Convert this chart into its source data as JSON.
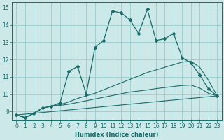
{
  "title": "",
  "xlabel": "Humidex (Indice chaleur)",
  "ylabel": "",
  "bg_color": "#cce8e8",
  "grid_color": "#99cccc",
  "line_color": "#1a6b6b",
  "xlim": [
    -0.5,
    23.5
  ],
  "ylim": [
    8.5,
    15.3
  ],
  "x_ticks": [
    0,
    1,
    2,
    3,
    4,
    5,
    6,
    7,
    8,
    9,
    10,
    11,
    12,
    13,
    14,
    15,
    16,
    17,
    18,
    19,
    20,
    21,
    22,
    23
  ],
  "y_ticks": [
    9,
    10,
    11,
    12,
    13,
    14,
    15
  ],
  "series1_x": [
    0,
    1,
    2,
    3,
    4,
    5,
    6,
    7,
    8,
    9,
    10,
    11,
    12,
    13,
    14,
    15,
    16,
    17,
    18,
    19,
    20,
    21,
    22,
    23
  ],
  "series1_y": [
    8.8,
    8.65,
    8.9,
    9.2,
    9.3,
    9.5,
    11.3,
    11.6,
    10.0,
    12.7,
    13.1,
    14.8,
    14.7,
    14.3,
    13.5,
    14.9,
    13.1,
    13.2,
    13.5,
    12.1,
    11.8,
    11.1,
    10.3,
    9.9
  ],
  "series2_x": [
    0,
    1,
    2,
    3,
    4,
    5,
    6,
    7,
    8,
    9,
    10,
    11,
    12,
    13,
    14,
    15,
    16,
    17,
    18,
    19,
    20,
    21,
    22,
    23
  ],
  "series2_y": [
    8.8,
    8.65,
    8.9,
    9.2,
    9.3,
    9.4,
    9.55,
    9.75,
    9.9,
    10.05,
    10.25,
    10.45,
    10.65,
    10.85,
    11.05,
    11.25,
    11.4,
    11.55,
    11.7,
    11.85,
    11.9,
    11.55,
    10.8,
    9.9
  ],
  "series3_x": [
    0,
    1,
    2,
    3,
    4,
    5,
    6,
    7,
    8,
    9,
    10,
    11,
    12,
    13,
    14,
    15,
    16,
    17,
    18,
    19,
    20,
    21,
    22,
    23
  ],
  "series3_y": [
    8.8,
    8.65,
    8.9,
    9.2,
    9.3,
    9.35,
    9.42,
    9.52,
    9.62,
    9.72,
    9.82,
    9.92,
    10.02,
    10.12,
    10.18,
    10.24,
    10.32,
    10.38,
    10.44,
    10.5,
    10.52,
    10.35,
    10.05,
    9.9
  ],
  "series4_x": [
    0,
    23
  ],
  "series4_y": [
    8.8,
    9.9
  ]
}
